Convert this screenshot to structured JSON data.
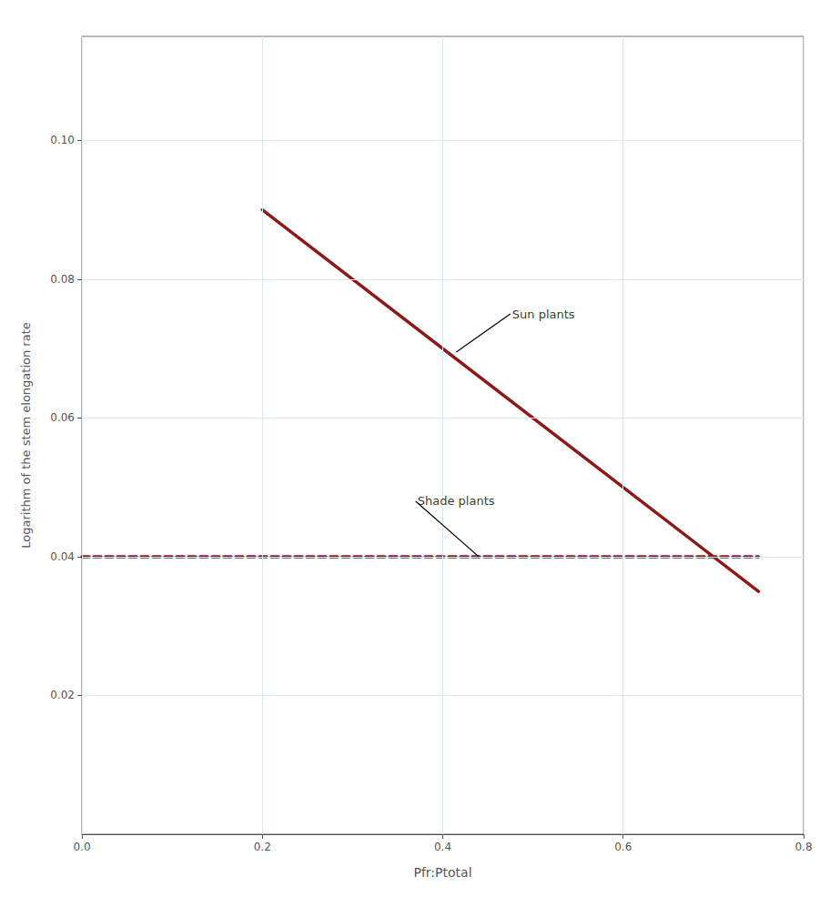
{
  "chart_data": {
    "type": "line",
    "xlabel": "Pfr:Ptotal",
    "ylabel": "Logarithm of the stem elongation rate",
    "xlim": [
      0.0,
      0.8
    ],
    "ylim": [
      0.0,
      0.115
    ],
    "xticks": [
      {
        "value": 0.0,
        "label": "0.0"
      },
      0.2,
      0.4,
      0.6,
      0.8
    ],
    "yticks": [
      0.02,
      0.04,
      0.06,
      0.08,
      {
        "value": 0.1,
        "label": "0.10"
      }
    ],
    "grid": true,
    "series": [
      {
        "color": "#8b1a1a",
        "line_style": "solid",
        "x": [
          0.2,
          0.75
        ],
        "values": [
          0.09,
          0.035
        ]
      },
      {
        "color": "#8b1a1a",
        "line_style": "dashed",
        "x": [
          0.0,
          0.75
        ],
        "values": [
          0.04,
          0.04
        ]
      }
    ],
    "annotations": [
      {
        "text": "Sun plants",
        "x": 0.475,
        "y": 0.075,
        "xy": [
          0.415,
          0.0695
        ]
      },
      {
        "text": "Shade plants",
        "x": 0.37,
        "y": 0.048,
        "xy": [
          0.44,
          0.04
        ]
      }
    ]
  }
}
